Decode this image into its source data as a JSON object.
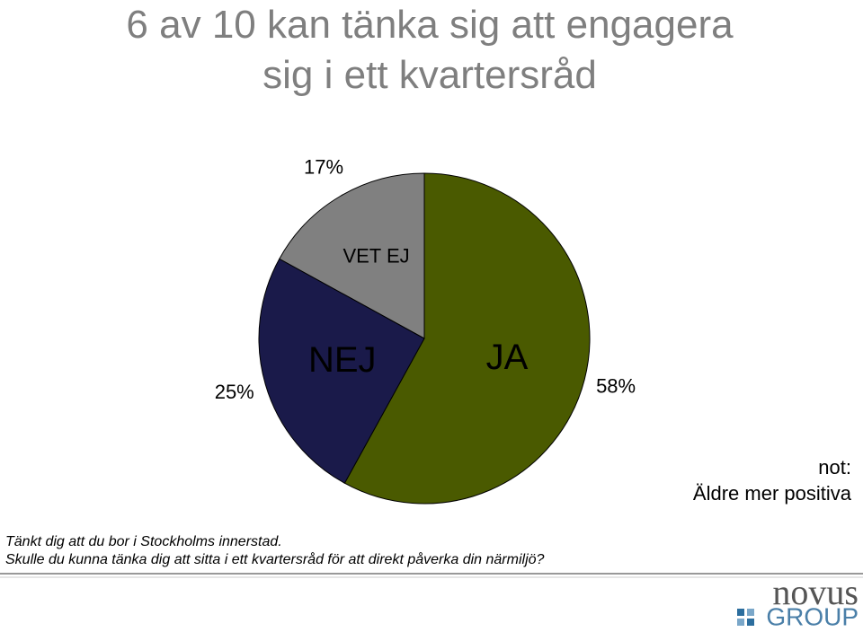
{
  "chart_data": {
    "type": "pie",
    "title": "6 av 10 kan tänka sig att engagera sig i ett kvartersråd",
    "categories": [
      "JA",
      "NEJ",
      "VET EJ"
    ],
    "values": [
      58,
      25,
      17
    ],
    "value_labels": [
      "58%",
      "25%",
      "17%"
    ],
    "colors": [
      "#4a5a00",
      "#1a1a4a",
      "#808080"
    ],
    "annotation": [
      "not:",
      "Äldre mer positiva"
    ],
    "footnote": [
      "Tänkt dig att du bor i Stockholms innerstad.",
      "Skulle du kunna tänka dig att sitta i ett kvartersråd för att direkt påverka din närmiljö?"
    ]
  },
  "logo": {
    "name": "novus",
    "sub": "GROUP"
  }
}
